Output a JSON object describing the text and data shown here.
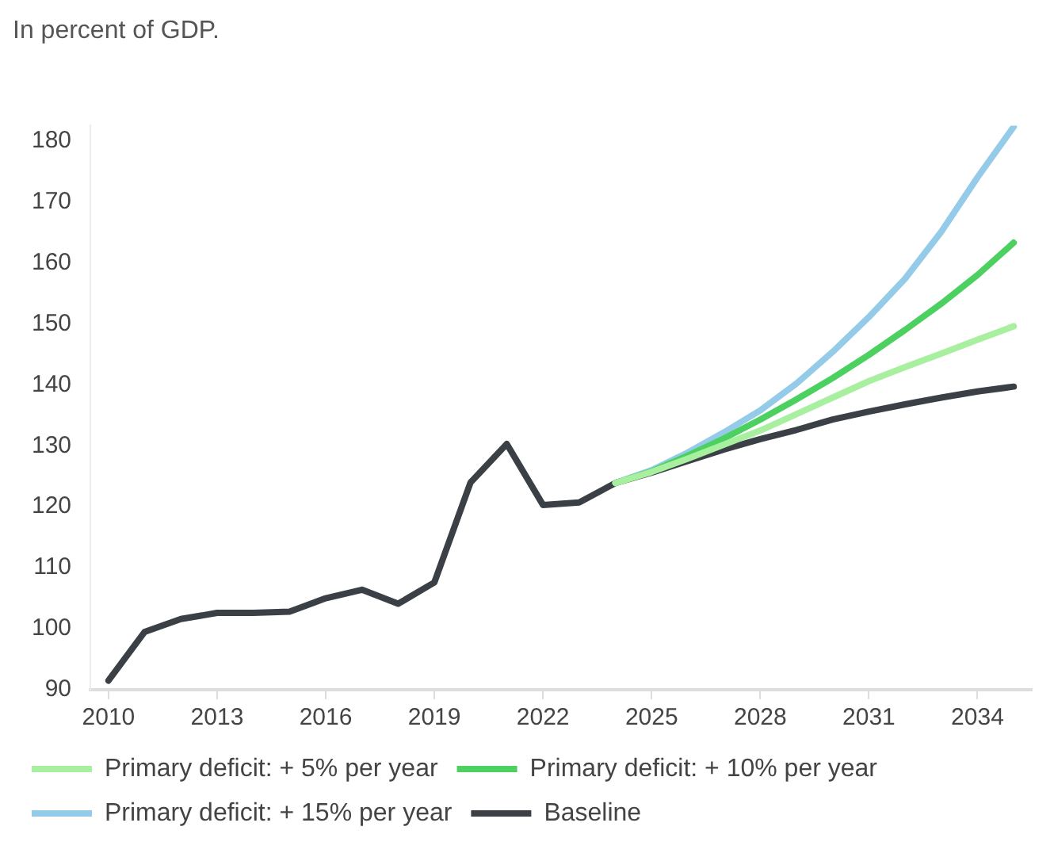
{
  "chart_data": {
    "type": "line",
    "title": "In percent of GDP.",
    "xlim": [
      2009.5,
      2035.5
    ],
    "xticks": [
      2010,
      2013,
      2016,
      2019,
      2022,
      2025,
      2028,
      2031,
      2034
    ],
    "ylim": [
      90,
      182.5
    ],
    "yticks": [
      90,
      100,
      110,
      120,
      130,
      140,
      150,
      160,
      170,
      180
    ],
    "grid": false,
    "legend": "bottom",
    "marker": "none",
    "line_style": "solid",
    "series": [
      {
        "name": "Primary deficit: + 5% per year",
        "color": "#a8f0a0",
        "x": [
          2024,
          2025,
          2026,
          2027,
          2028,
          2029,
          2030,
          2031,
          2032,
          2033,
          2034,
          2035
        ],
        "values": [
          123.9,
          125.7,
          127.9,
          130.2,
          132.5,
          135.2,
          137.9,
          140.6,
          142.9,
          145.1,
          147.4,
          149.6
        ]
      },
      {
        "name": "Primary deficit: + 10% per year",
        "color": "#4cd060",
        "x": [
          2024,
          2025,
          2026,
          2027,
          2028,
          2029,
          2030,
          2031,
          2032,
          2033,
          2034,
          2035
        ],
        "values": [
          123.9,
          125.8,
          128.4,
          131.2,
          134.3,
          137.6,
          141.1,
          144.9,
          149.0,
          153.3,
          158.0,
          163.3
        ]
      },
      {
        "name": "Primary deficit: + 15% per year",
        "color": "#94cbe8",
        "x": [
          2024,
          2025,
          2026,
          2027,
          2028,
          2029,
          2030,
          2031,
          2032,
          2033,
          2034,
          2035
        ],
        "values": [
          123.9,
          126.0,
          128.9,
          132.2,
          135.8,
          140.2,
          145.4,
          151.1,
          157.4,
          165.1,
          174.0,
          182.3
        ]
      },
      {
        "name": "Baseline",
        "color": "#3a4045",
        "x": [
          2010,
          2011,
          2012,
          2013,
          2014,
          2015,
          2016,
          2017,
          2018,
          2019,
          2020,
          2021,
          2022,
          2023,
          2024,
          2025,
          2026,
          2027,
          2028,
          2029,
          2030,
          2031,
          2032,
          2033,
          2034,
          2035
        ],
        "values": [
          91.5,
          99.5,
          101.6,
          102.6,
          102.6,
          102.8,
          105.0,
          106.4,
          104.1,
          107.6,
          124.0,
          130.3,
          120.3,
          120.7,
          123.9,
          125.6,
          127.5,
          129.4,
          131.1,
          132.6,
          134.3,
          135.6,
          136.8,
          137.9,
          138.9,
          139.7
        ]
      }
    ]
  }
}
